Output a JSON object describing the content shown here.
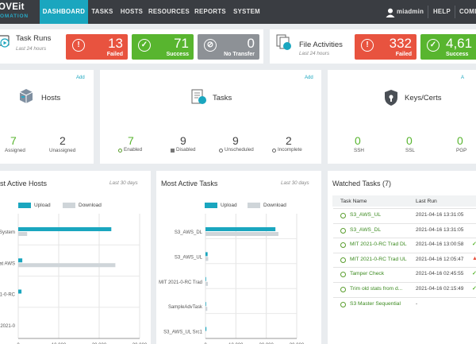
{
  "logo": {
    "line1": "OVEit",
    "line2": "OMATION"
  },
  "nav": {
    "items": [
      {
        "label": "DASHBOARD",
        "active": true
      },
      {
        "label": "TASKS"
      },
      {
        "label": "HOSTS"
      },
      {
        "label": "RESOURCES"
      },
      {
        "label": "REPORTS"
      },
      {
        "label": "SYSTEM"
      }
    ],
    "user": "miadmin",
    "help": "HELP",
    "truncated": "COMI"
  },
  "colors": {
    "failed": "#e8533f",
    "success": "#58b52f",
    "notransfer": "#8d9196",
    "accent": "#1aa6bf",
    "upload": "#1aa6bf",
    "download": "#cfd5d9"
  },
  "task_runs": {
    "title": "Task Runs",
    "subtitle": "Last 24 hours",
    "failed": {
      "value": "13",
      "label": "Failed"
    },
    "success": {
      "value": "71",
      "label": "Success"
    },
    "no_transfer": {
      "value": "0",
      "label": "No Transfer"
    }
  },
  "file_activities": {
    "title": "File Activities",
    "subtitle": "Last 24 hours",
    "failed": {
      "value": "332",
      "label": "Failed"
    },
    "success": {
      "value": "4,61",
      "label": "Success"
    }
  },
  "hosts": {
    "title": "Hosts",
    "add": "Add",
    "stats": [
      {
        "value": "7",
        "label": "Assigned"
      },
      {
        "value": "2",
        "label": "Unassigned"
      }
    ]
  },
  "tasks": {
    "title": "Tasks",
    "add": "Add",
    "stats": [
      {
        "value": "7",
        "label": "Enabled"
      },
      {
        "value": "9",
        "label": "Disabled"
      },
      {
        "value": "9",
        "label": "Unscheduled"
      },
      {
        "value": "2",
        "label": "Incomplete"
      }
    ]
  },
  "keys": {
    "title": "Keys/Certs",
    "add": "A",
    "stats": [
      {
        "value": "0",
        "label": "SSH"
      },
      {
        "value": "0",
        "label": "SSL"
      },
      {
        "value": "0",
        "label": "PGP"
      }
    ]
  },
  "active_hosts": {
    "title": "st Active Hosts",
    "period": "Last 30 days",
    "legend": [
      "Upload",
      "Download"
    ],
    "chart_data": {
      "type": "bar",
      "categories": [
        "System",
        "at AWS",
        "21-0-RC",
        "2021-0"
      ],
      "series": [
        {
          "name": "Upload",
          "values": [
            23000,
            1000,
            800,
            0
          ]
        },
        {
          "name": "Download",
          "values": [
            2200,
            24000,
            0,
            0
          ]
        }
      ],
      "xlim": [
        0,
        30000
      ],
      "xticks": [
        "0",
        "10,000",
        "20,000",
        "30,000"
      ]
    }
  },
  "active_tasks": {
    "title": "Most Active Tasks",
    "period": "Last 30 days",
    "legend": [
      "Upload",
      "Download"
    ],
    "chart_data": {
      "type": "bar",
      "categories": [
        "S3_AWS_DL",
        "S3_AWS_UL",
        "MIT 2021-0-RC Trad",
        "SampleAdvTask",
        "S3_AWS_UL Src1"
      ],
      "series": [
        {
          "name": "Upload",
          "values": [
            23000,
            700,
            200,
            200,
            300
          ]
        },
        {
          "name": "Download",
          "values": [
            24000,
            900,
            800,
            600,
            0
          ]
        }
      ],
      "xlim": [
        0,
        30000
      ],
      "xticks": [
        "0",
        "10,000",
        "20,000",
        "30,000"
      ]
    }
  },
  "watched": {
    "title": "Watched Tasks (7)",
    "columns": [
      "Task Name",
      "Last Run"
    ],
    "rows": [
      {
        "name": "S3_AWS_UL",
        "last_run": "2021-04-16 13:31:05",
        "status": ""
      },
      {
        "name": "S3_AWS_DL",
        "last_run": "2021-04-16 13:31:05",
        "status": ""
      },
      {
        "name": "MIT 2021-0-RC Trad DL",
        "last_run": "2021-04-16 13:00:58",
        "status": "ok"
      },
      {
        "name": "MIT 2021-0-RC Trad UL",
        "last_run": "2021-04-16 12:05:47",
        "status": "warn"
      },
      {
        "name": "Tamper Check",
        "last_run": "2021-04-16 02:45:55",
        "status": "ok"
      },
      {
        "name": "Trim old stats from d...",
        "last_run": "2021-04-16 02:15:49",
        "status": "ok"
      },
      {
        "name": "S3 Master Sequential",
        "last_run": "-",
        "status": ""
      }
    ]
  }
}
